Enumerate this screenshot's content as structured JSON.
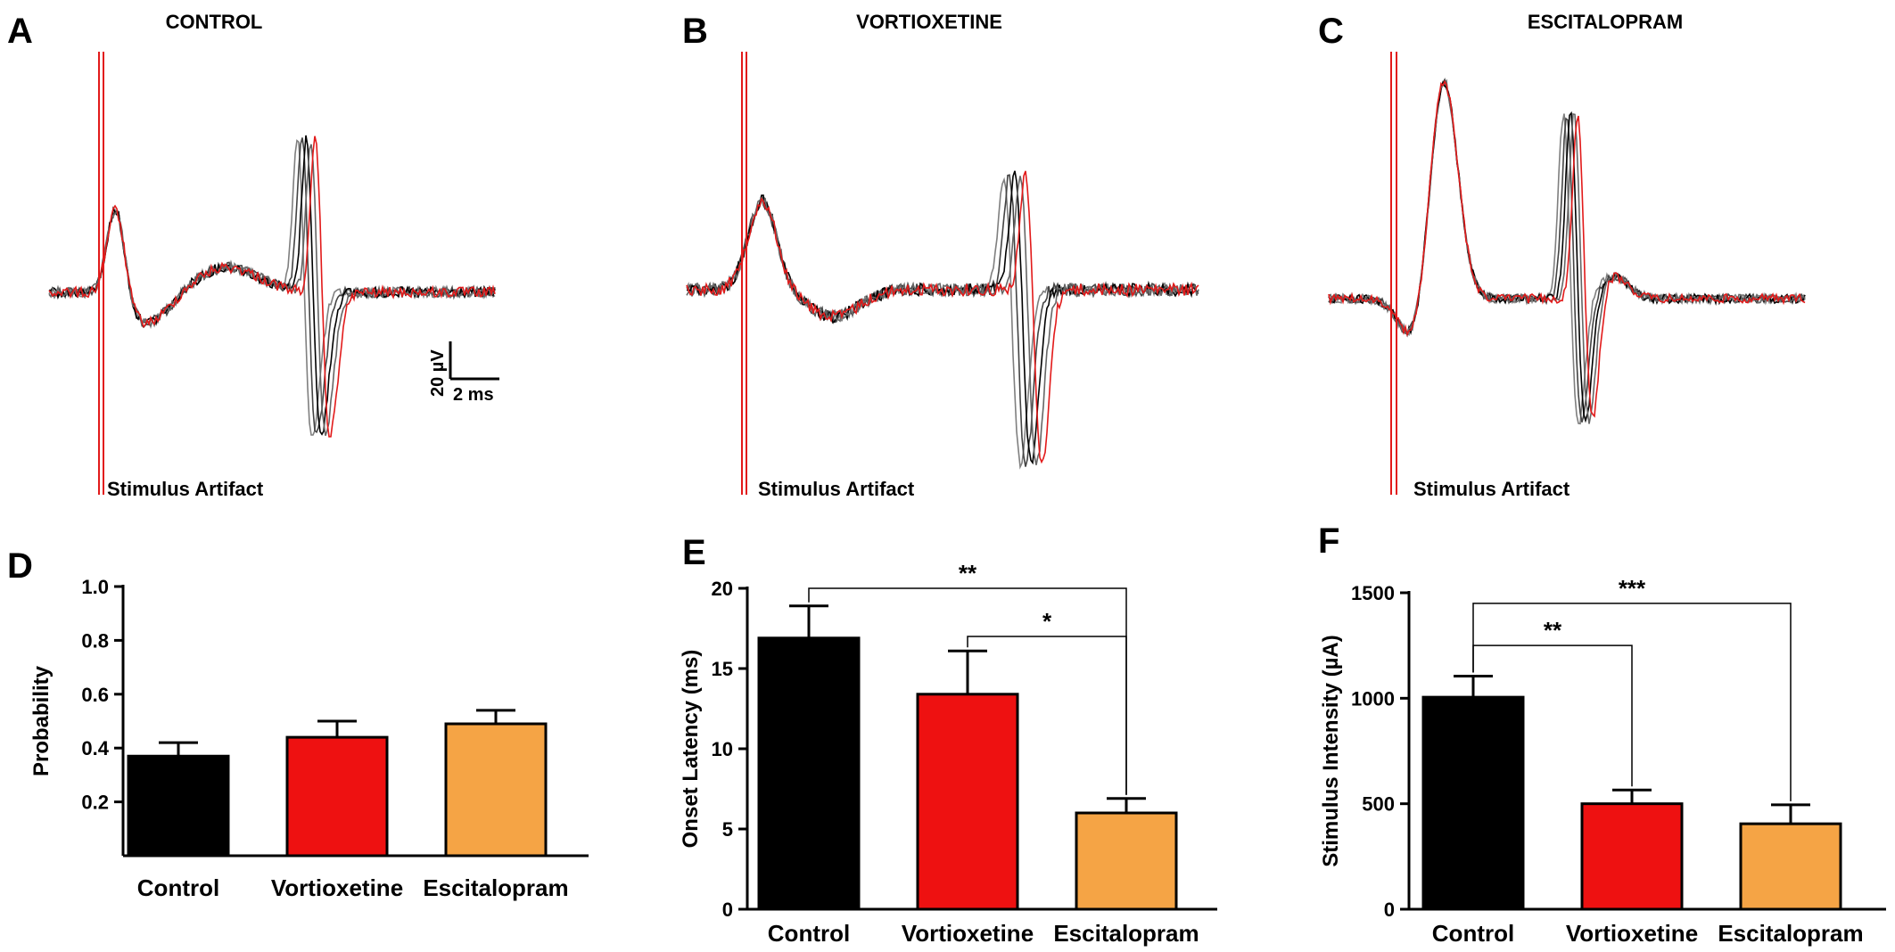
{
  "panels": {
    "A": {
      "label": "A",
      "title": "CONTROL",
      "artifact_label": "Stimulus Artifact"
    },
    "B": {
      "label": "B",
      "title": "VORTIOXETINE",
      "artifact_label": "Stimulus Artifact"
    },
    "C": {
      "label": "C",
      "title": "ESCITALOPRAM",
      "artifact_label": "Stimulus Artifact"
    },
    "D": {
      "label": "D"
    },
    "E": {
      "label": "E"
    },
    "F": {
      "label": "F"
    }
  },
  "scale_bar": {
    "vertical_label": "20 µV",
    "horizontal_label": "2 ms"
  },
  "colors": {
    "control": "#000000",
    "vortioxetine": "#ee1111",
    "escitalopram": "#f5a445",
    "trace_gray": "#7f7f7f",
    "trace_red": "#e21a1a"
  },
  "chart_data": [
    {
      "type": "bar",
      "panel": "D",
      "categories": [
        "Control",
        "Vortioxetine",
        "Escitalopram"
      ],
      "values": [
        0.37,
        0.44,
        0.49
      ],
      "errors": [
        0.05,
        0.06,
        0.05
      ],
      "ylabel": "Probability",
      "ylim": [
        0.0,
        1.0
      ],
      "yticks": [
        0.2,
        0.4,
        0.6,
        0.8,
        1.0
      ],
      "ytick_labels": [
        "0.2",
        "0.4",
        "0.6",
        "0.8",
        "1.0"
      ],
      "significance": []
    },
    {
      "type": "bar",
      "panel": "E",
      "categories": [
        "Control",
        "Vortioxetine",
        "Escitalopram"
      ],
      "values": [
        16.9,
        13.4,
        6.0
      ],
      "errors": [
        2.0,
        2.7,
        0.9
      ],
      "ylabel": "Onset Latency (ms)",
      "ylim": [
        0,
        20
      ],
      "yticks": [
        0,
        5,
        10,
        15,
        20
      ],
      "ytick_labels": [
        "0",
        "5",
        "10",
        "15",
        "20"
      ],
      "significance": [
        {
          "from": 0,
          "to": 2,
          "label": "**",
          "level": 20.0
        },
        {
          "from": 1,
          "to": 2,
          "label": "*",
          "level": 17.0
        }
      ]
    },
    {
      "type": "bar",
      "panel": "F",
      "categories": [
        "Control",
        "Vortioxetine",
        "Escitalopram"
      ],
      "values": [
        1005,
        500,
        405
      ],
      "errors": [
        100,
        65,
        90
      ],
      "ylabel": "Stimulus Intensity (µA)",
      "ylim": [
        0,
        1500
      ],
      "yticks": [
        0,
        500,
        1000,
        1500
      ],
      "ytick_labels": [
        "0",
        "500",
        "1000",
        "1500"
      ],
      "significance": [
        {
          "from": 0,
          "to": 1,
          "label": "**",
          "level": 1250
        },
        {
          "from": 0,
          "to": 2,
          "label": "***",
          "level": 1450
        }
      ]
    }
  ]
}
